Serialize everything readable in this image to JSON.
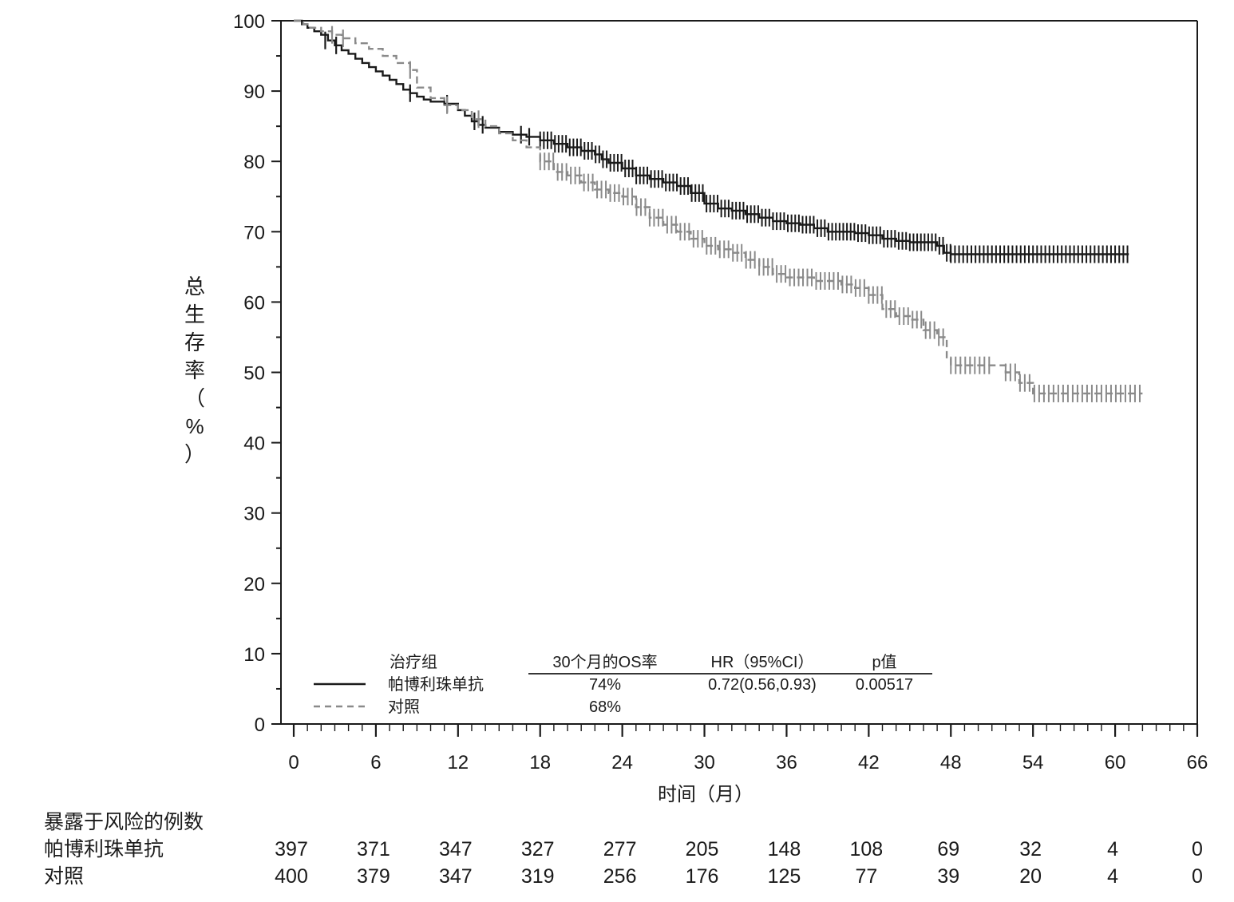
{
  "chart_data": {
    "type": "line",
    "subtype": "kaplan-meier",
    "ylabel_chars": [
      "总",
      "生",
      "存",
      "率",
      "（",
      "%",
      "）"
    ],
    "xlabel": "时间（月）",
    "xlim": [
      0,
      66
    ],
    "ylim": [
      0,
      100
    ],
    "x_ticks": [
      0,
      6,
      12,
      18,
      24,
      30,
      36,
      42,
      48,
      54,
      60,
      66
    ],
    "x_tick_labels": [
      "0",
      "6",
      "12",
      "18",
      "24",
      "30",
      "36",
      "42",
      "48",
      "54",
      "60",
      "66"
    ],
    "y_ticks": [
      0,
      10,
      20,
      30,
      40,
      50,
      60,
      70,
      80,
      90,
      100
    ],
    "y_tick_labels": [
      "0",
      "10",
      "20",
      "30",
      "40",
      "50",
      "60",
      "70",
      "80",
      "90",
      "100"
    ],
    "series": [
      {
        "name": "帕博利珠单抗",
        "color": "#1a1a1a",
        "dash": false,
        "steps": [
          [
            0,
            100
          ],
          [
            0.6,
            99.5
          ],
          [
            1,
            99
          ],
          [
            1.5,
            98.5
          ],
          [
            2,
            98
          ],
          [
            2.5,
            97.2
          ],
          [
            3,
            96.5
          ],
          [
            3.5,
            95.8
          ],
          [
            4,
            95.3
          ],
          [
            4.5,
            94.6
          ],
          [
            5,
            94
          ],
          [
            5.5,
            93.4
          ],
          [
            6,
            92.8
          ],
          [
            6.5,
            92.2
          ],
          [
            7,
            91.6
          ],
          [
            7.5,
            91
          ],
          [
            8,
            90.2
          ],
          [
            8.5,
            89.7
          ],
          [
            9,
            89.2
          ],
          [
            9.5,
            88.8
          ],
          [
            10,
            88.5
          ],
          [
            11,
            88.2
          ],
          [
            12,
            87.3
          ],
          [
            12.5,
            86.5
          ],
          [
            13,
            85.7
          ],
          [
            13.5,
            85.2
          ],
          [
            14,
            84.8
          ],
          [
            15,
            84.2
          ],
          [
            16,
            83.8
          ],
          [
            17,
            83.5
          ],
          [
            18,
            83
          ],
          [
            19,
            82.5
          ],
          [
            20,
            82
          ],
          [
            21,
            81.5
          ],
          [
            22,
            81
          ],
          [
            22.5,
            80.3
          ],
          [
            23,
            79.8
          ],
          [
            24,
            79
          ],
          [
            25,
            78
          ],
          [
            26,
            77.5
          ],
          [
            27,
            77
          ],
          [
            28,
            76.5
          ],
          [
            29,
            75.5
          ],
          [
            30,
            74
          ],
          [
            31,
            73.3
          ],
          [
            32,
            73
          ],
          [
            33,
            72.5
          ],
          [
            34,
            72
          ],
          [
            35,
            71.5
          ],
          [
            36,
            71.2
          ],
          [
            37,
            71
          ],
          [
            38,
            70.5
          ],
          [
            39,
            70
          ],
          [
            40,
            70
          ],
          [
            41,
            69.8
          ],
          [
            42,
            69.5
          ],
          [
            43,
            69
          ],
          [
            44,
            68.7
          ],
          [
            45,
            68.5
          ],
          [
            46,
            68.5
          ],
          [
            47,
            68
          ],
          [
            47.5,
            67
          ],
          [
            48,
            66.8
          ],
          [
            61,
            66.8
          ]
        ],
        "censor_ticks": [
          [
            2.3,
            97.2
          ],
          [
            3.1,
            96.5
          ],
          [
            8.5,
            89.7
          ],
          [
            11.2,
            88.2
          ],
          [
            13.2,
            85.7
          ],
          [
            13.8,
            85.2
          ],
          [
            16.6,
            83.8
          ],
          [
            17.2,
            83.5
          ]
        ],
        "censor_dense": [
          [
            18,
            48,
            0.27
          ],
          [
            48,
            61,
            0.3
          ]
        ]
      },
      {
        "name": "对照",
        "color": "#8a8a8a",
        "dash": true,
        "steps": [
          [
            0,
            100
          ],
          [
            0.7,
            99.5
          ],
          [
            1.2,
            99
          ],
          [
            2,
            98.5
          ],
          [
            2.8,
            98
          ],
          [
            3.5,
            97.5
          ],
          [
            4.5,
            96.8
          ],
          [
            5.5,
            96
          ],
          [
            6.5,
            95
          ],
          [
            7.5,
            94
          ],
          [
            8.5,
            93
          ],
          [
            9,
            90.5
          ],
          [
            10,
            89
          ],
          [
            11,
            88
          ],
          [
            12,
            87.3
          ],
          [
            13,
            86
          ],
          [
            14,
            85
          ],
          [
            15,
            84
          ],
          [
            16,
            83
          ],
          [
            17,
            82
          ],
          [
            18,
            80
          ],
          [
            19,
            78.5
          ],
          [
            20,
            78
          ],
          [
            21,
            77
          ],
          [
            22,
            76
          ],
          [
            23,
            75.5
          ],
          [
            24,
            75
          ],
          [
            25,
            73.5
          ],
          [
            26,
            72
          ],
          [
            27,
            71
          ],
          [
            28,
            70
          ],
          [
            29,
            69
          ],
          [
            30,
            68
          ],
          [
            31,
            67.5
          ],
          [
            32,
            67
          ],
          [
            33,
            66
          ],
          [
            34,
            65
          ],
          [
            35,
            64
          ],
          [
            36,
            63.5
          ],
          [
            37,
            63.5
          ],
          [
            38,
            63
          ],
          [
            39,
            63
          ],
          [
            40,
            62.5
          ],
          [
            41,
            62
          ],
          [
            42,
            61
          ],
          [
            43,
            59
          ],
          [
            44,
            58
          ],
          [
            45,
            57.5
          ],
          [
            46,
            56
          ],
          [
            47,
            55
          ],
          [
            47.7,
            52
          ],
          [
            48,
            51
          ],
          [
            52,
            50
          ],
          [
            53,
            48.5
          ],
          [
            54,
            47
          ],
          [
            62,
            47
          ]
        ],
        "censor_ticks": [
          [
            2.8,
            98
          ],
          [
            3.6,
            97.5
          ],
          [
            8.5,
            93
          ],
          [
            11.2,
            88
          ],
          [
            13.5,
            86
          ]
        ],
        "censor_dense": [
          [
            18,
            47.5,
            0.32
          ],
          [
            48,
            51,
            0.35
          ],
          [
            52,
            62,
            0.35
          ]
        ]
      }
    ],
    "legend": {
      "header": [
        "治疗组",
        "30个月的OS率",
        "HR（95%CI）",
        "p值"
      ],
      "rows": [
        [
          "帕博利珠单抗",
          "74%",
          "0.72(0.56,0.93)",
          "0.00517"
        ],
        [
          "对照",
          "68%",
          "",
          ""
        ]
      ],
      "placement": "bottom-left"
    },
    "risk_table": {
      "title": "暴露于风险的例数",
      "rows": [
        {
          "label": "帕博利珠单抗",
          "counts": [
            "397",
            "371",
            "347",
            "327",
            "277",
            "205",
            "148",
            "108",
            "69",
            "32",
            "4",
            "0"
          ]
        },
        {
          "label": "对照",
          "counts": [
            "400",
            "379",
            "347",
            "319",
            "256",
            "176",
            "125",
            "77",
            "39",
            "20",
            "4",
            "0"
          ]
        }
      ]
    }
  }
}
